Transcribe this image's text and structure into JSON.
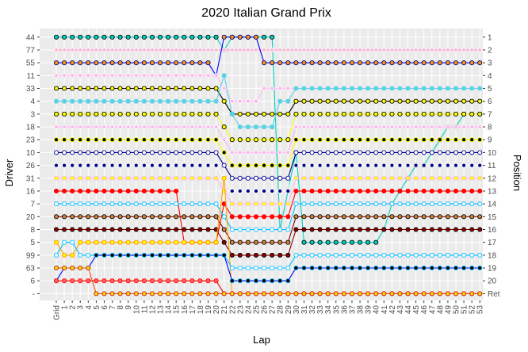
{
  "chart_data": {
    "type": "line",
    "title": "2020 Italian Grand Prix",
    "xlabel": "Lap",
    "ylabel_left": "Driver",
    "ylabel_right": "Position",
    "x_ticks": [
      "Grid",
      "1",
      "2",
      "3",
      "4",
      "5",
      "6",
      "7",
      "8",
      "9",
      "10",
      "11",
      "12",
      "13",
      "14",
      "15",
      "16",
      "17",
      "18",
      "19",
      "20",
      "21",
      "22",
      "23",
      "24",
      "25",
      "26",
      "27",
      "28",
      "29",
      "30",
      "31",
      "32",
      "33",
      "34",
      "35",
      "36",
      "37",
      "38",
      "39",
      "40",
      "41",
      "42",
      "43",
      "44",
      "45",
      "46",
      "47",
      "48",
      "49",
      "50",
      "51",
      "52",
      "53"
    ],
    "driver_ticks": [
      "44",
      "77",
      "55",
      "11",
      "33",
      "4",
      "3",
      "18",
      "23",
      "10",
      "26",
      "31",
      "16",
      "7",
      "20",
      "8",
      "5",
      "99",
      "63",
      "6",
      "-"
    ],
    "position_ticks": [
      "1",
      "2",
      "3",
      "4",
      "5",
      "6",
      "7",
      "8",
      "9",
      "10",
      "11",
      "12",
      "13",
      "14",
      "15",
      "16",
      "17",
      "18",
      "19",
      "20",
      "Ret"
    ],
    "y_range": [
      1,
      21
    ],
    "panel_background": "#ebebeb",
    "grid": true,
    "series": [
      {
        "color": "#00d2be",
        "fill": "#00d2be",
        "stroke": "#000000",
        "values": [
          1,
          1,
          1,
          1,
          1,
          1,
          1,
          1,
          1,
          1,
          1,
          1,
          1,
          1,
          1,
          1,
          1,
          1,
          1,
          1,
          1,
          2,
          1,
          1,
          1,
          1,
          1,
          1,
          16,
          13,
          10,
          17,
          17,
          17,
          17,
          17,
          17,
          17,
          17,
          17,
          17,
          16,
          14,
          13,
          12,
          11,
          11,
          10,
          9,
          8,
          8,
          7,
          7,
          7
        ]
      },
      {
        "color": "#ff87bc",
        "fill": "#ffb6d9",
        "stroke": "#ffffff",
        "values": [
          2,
          2,
          2,
          2,
          2,
          2,
          2,
          2,
          2,
          2,
          2,
          2,
          2,
          2,
          2,
          2,
          2,
          2,
          2,
          2,
          2,
          2,
          2,
          2,
          2,
          2,
          2,
          2,
          2,
          2,
          2,
          2,
          2,
          2,
          2,
          2,
          2,
          2,
          2,
          2,
          2,
          2,
          2,
          2,
          2,
          2,
          2,
          2,
          2,
          2,
          2,
          2,
          2,
          2
        ]
      },
      {
        "color": "#0000ff",
        "fill": "#ff9800",
        "stroke": "#00008b",
        "values": [
          3,
          3,
          3,
          3,
          3,
          3,
          3,
          3,
          3,
          3,
          3,
          3,
          3,
          3,
          3,
          3,
          3,
          3,
          3,
          3,
          4,
          1,
          1,
          1,
          1,
          1,
          3,
          3,
          3,
          3,
          3,
          3,
          3,
          3,
          3,
          3,
          3,
          3,
          3,
          3,
          3,
          3,
          3,
          3,
          3,
          3,
          3,
          3,
          3,
          3,
          3,
          3,
          3,
          3
        ]
      },
      {
        "color": "#ffc0f0",
        "fill": "#ffb6f0",
        "stroke": "#ffffff",
        "values": [
          4,
          4,
          4,
          4,
          4,
          4,
          4,
          4,
          4,
          4,
          4,
          4,
          4,
          4,
          4,
          4,
          4,
          4,
          4,
          4,
          4,
          5,
          6,
          6,
          6,
          6,
          5,
          5,
          5,
          5,
          5,
          5,
          5,
          5,
          5,
          5,
          5,
          5,
          5,
          5,
          5,
          5,
          5,
          5,
          5,
          5,
          5,
          5,
          5,
          5,
          5,
          5,
          5,
          5
        ]
      },
      {
        "color": "#000000",
        "fill": "#ffff00",
        "stroke": "#000000",
        "values": [
          5,
          5,
          5,
          5,
          5,
          5,
          5,
          5,
          5,
          5,
          5,
          5,
          5,
          5,
          5,
          5,
          5,
          5,
          5,
          5,
          5,
          6,
          7,
          7,
          7,
          7,
          7,
          7,
          7,
          7,
          6,
          6,
          6,
          6,
          6,
          6,
          6,
          6,
          6,
          6,
          6,
          6,
          6,
          6,
          6,
          6,
          6,
          6,
          6,
          6,
          6,
          6,
          6,
          6
        ]
      },
      {
        "color": "#5ad2e6",
        "fill": "#5ad2e6",
        "stroke": "#5ad2e6",
        "values": [
          6,
          6,
          6,
          6,
          6,
          6,
          6,
          6,
          6,
          6,
          6,
          6,
          6,
          6,
          6,
          6,
          6,
          6,
          6,
          6,
          6,
          4,
          7,
          8,
          8,
          8,
          8,
          8,
          6,
          6,
          5,
          5,
          5,
          5,
          5,
          5,
          5,
          5,
          5,
          5,
          5,
          5,
          5,
          5,
          5,
          5,
          5,
          5,
          5,
          5,
          5,
          5,
          5,
          5
        ]
      },
      {
        "color": "#ffff00",
        "fill": "#ffff00",
        "stroke": "#000000",
        "values": [
          7,
          7,
          7,
          7,
          7,
          7,
          7,
          7,
          7,
          7,
          7,
          7,
          7,
          7,
          7,
          7,
          7,
          7,
          7,
          7,
          7,
          8,
          9,
          9,
          9,
          9,
          9,
          9,
          9,
          9,
          7,
          7,
          7,
          7,
          7,
          7,
          7,
          7,
          7,
          7,
          7,
          7,
          7,
          7,
          7,
          7,
          7,
          7,
          7,
          7,
          7,
          7,
          7,
          7
        ]
      },
      {
        "color": "#ffb6f0",
        "fill": "#ffb6f0",
        "stroke": "#ffffff",
        "values": [
          8,
          8,
          8,
          8,
          8,
          8,
          8,
          8,
          8,
          8,
          8,
          8,
          8,
          8,
          8,
          8,
          8,
          8,
          8,
          8,
          8,
          9,
          10,
          10,
          10,
          10,
          10,
          10,
          10,
          10,
          8,
          8,
          8,
          8,
          8,
          8,
          8,
          8,
          8,
          8,
          8,
          8,
          8,
          8,
          8,
          8,
          8,
          8,
          8,
          8,
          8,
          8,
          8,
          8
        ]
      },
      {
        "color": "#ffff00",
        "fill": "#000000",
        "stroke": "#ffff00",
        "values": [
          9,
          9,
          9,
          9,
          9,
          9,
          9,
          9,
          9,
          9,
          9,
          9,
          9,
          9,
          9,
          9,
          9,
          9,
          9,
          9,
          9,
          10,
          11,
          11,
          11,
          11,
          11,
          11,
          11,
          11,
          9,
          9,
          9,
          9,
          9,
          9,
          9,
          9,
          9,
          9,
          9,
          9,
          9,
          9,
          9,
          9,
          9,
          9,
          9,
          9,
          9,
          9,
          9,
          9
        ]
      },
      {
        "color": "#00008b",
        "fill": "#ffffff",
        "stroke": "#00008b",
        "values": [
          10,
          10,
          10,
          10,
          10,
          10,
          10,
          10,
          10,
          10,
          10,
          10,
          10,
          10,
          10,
          10,
          10,
          10,
          10,
          10,
          10,
          11,
          12,
          12,
          12,
          12,
          12,
          12,
          12,
          12,
          10,
          10,
          10,
          10,
          10,
          10,
          10,
          10,
          10,
          10,
          10,
          10,
          10,
          10,
          10,
          10,
          10,
          10,
          10,
          10,
          10,
          10,
          10,
          10
        ]
      },
      {
        "color": "#ffffff",
        "fill": "#000080",
        "stroke": "#ffffff",
        "values": [
          11,
          11,
          11,
          11,
          11,
          11,
          11,
          11,
          11,
          11,
          11,
          11,
          11,
          11,
          11,
          11,
          11,
          11,
          11,
          11,
          11,
          12,
          13,
          13,
          13,
          13,
          13,
          13,
          13,
          13,
          11,
          11,
          11,
          11,
          11,
          11,
          11,
          11,
          11,
          11,
          11,
          11,
          11,
          11,
          11,
          11,
          11,
          11,
          11,
          11,
          11,
          11,
          11,
          11
        ]
      },
      {
        "color": "#ffb6f0",
        "fill": "#ffff00",
        "stroke": "#ffb6f0",
        "values": [
          12,
          12,
          12,
          12,
          12,
          12,
          12,
          12,
          12,
          12,
          12,
          12,
          12,
          12,
          12,
          12,
          12,
          12,
          12,
          12,
          12,
          13,
          14,
          14,
          14,
          14,
          14,
          14,
          14,
          14,
          12,
          12,
          12,
          12,
          12,
          12,
          12,
          12,
          12,
          12,
          12,
          12,
          12,
          12,
          12,
          12,
          12,
          12,
          12,
          12,
          12,
          12,
          12,
          12
        ]
      },
      {
        "color": "#ff0000",
        "fill": "#ff0000",
        "stroke": "#ff0000",
        "values": [
          13,
          13,
          13,
          13,
          13,
          13,
          13,
          13,
          13,
          13,
          13,
          13,
          13,
          13,
          13,
          13,
          17,
          17,
          17,
          17,
          17,
          14,
          15,
          15,
          15,
          15,
          15,
          15,
          15,
          15,
          13,
          13,
          13,
          13,
          13,
          13,
          13,
          13,
          13,
          13,
          13,
          13,
          13,
          13,
          13,
          13,
          13,
          13,
          13,
          13,
          13,
          13,
          13,
          13
        ]
      },
      {
        "color": "#00bfff",
        "fill": "#ffffff",
        "stroke": "#00bfff",
        "values": [
          14,
          14,
          14,
          14,
          14,
          14,
          14,
          14,
          14,
          14,
          14,
          14,
          14,
          14,
          14,
          14,
          14,
          14,
          14,
          14,
          14,
          15,
          16,
          16,
          16,
          16,
          16,
          16,
          16,
          16,
          14,
          14,
          14,
          14,
          14,
          14,
          14,
          14,
          14,
          14,
          14,
          14,
          14,
          14,
          14,
          14,
          14,
          14,
          14,
          14,
          14,
          14,
          14,
          14
        ]
      },
      {
        "color": "#8b0000",
        "fill": "#cd853f",
        "stroke": "#000000",
        "values": [
          15,
          15,
          15,
          15,
          15,
          15,
          15,
          15,
          15,
          15,
          15,
          15,
          15,
          15,
          15,
          15,
          15,
          15,
          15,
          15,
          15,
          16,
          17,
          17,
          17,
          17,
          17,
          17,
          17,
          17,
          15,
          15,
          15,
          15,
          15,
          15,
          15,
          15,
          15,
          15,
          15,
          15,
          15,
          15,
          15,
          15,
          15,
          15,
          15,
          15,
          15,
          15,
          15,
          15
        ]
      },
      {
        "color": "#8b0000",
        "fill": "#8b0000",
        "stroke": "#000000",
        "values": [
          16,
          16,
          16,
          16,
          16,
          16,
          16,
          16,
          16,
          16,
          16,
          16,
          16,
          16,
          16,
          16,
          16,
          16,
          16,
          16,
          16,
          17,
          18,
          18,
          18,
          18,
          18,
          18,
          18,
          18,
          16,
          16,
          16,
          16,
          16,
          16,
          16,
          16,
          16,
          16,
          16,
          16,
          16,
          16,
          16,
          16,
          16,
          16,
          16,
          16,
          16,
          16,
          16,
          16
        ]
      },
      {
        "color": "#ffa500",
        "fill": "#ffff00",
        "stroke": "#ff8c00",
        "values": [
          17,
          18,
          18,
          17,
          17,
          17,
          17,
          17,
          17,
          17,
          17,
          17,
          17,
          17,
          17,
          17,
          17,
          17,
          17,
          17,
          17,
          12,
          21,
          21,
          21,
          21,
          21,
          21,
          21,
          21,
          21,
          21,
          21,
          21,
          21,
          21,
          21,
          21,
          21,
          21,
          21,
          21,
          21,
          21,
          21,
          21,
          21,
          21,
          21,
          21,
          21,
          21,
          21,
          21
        ]
      },
      {
        "color": "#00bfff",
        "fill": "#ffffff",
        "stroke": "#00bfff",
        "values": [
          18,
          17,
          17,
          18,
          18,
          18,
          18,
          18,
          18,
          18,
          18,
          18,
          18,
          18,
          18,
          18,
          18,
          18,
          18,
          18,
          18,
          18,
          19,
          19,
          19,
          19,
          19,
          19,
          19,
          19,
          18,
          18,
          18,
          18,
          18,
          18,
          18,
          18,
          18,
          18,
          18,
          18,
          18,
          18,
          18,
          18,
          18,
          18,
          18,
          18,
          18,
          18,
          18,
          18
        ]
      },
      {
        "color": "#0000ff",
        "fill": "#000000",
        "stroke": "#00bfff",
        "values": [
          20,
          19,
          19,
          19,
          19,
          18,
          18,
          18,
          18,
          18,
          18,
          18,
          18,
          18,
          18,
          18,
          18,
          18,
          18,
          18,
          18,
          18,
          20,
          20,
          20,
          20,
          20,
          20,
          20,
          20,
          19,
          19,
          19,
          19,
          19,
          19,
          19,
          19,
          19,
          19,
          19,
          19,
          19,
          19,
          19,
          19,
          19,
          19,
          19,
          19,
          19,
          19,
          19,
          19
        ]
      },
      {
        "color": "#ff0000",
        "fill": "#ff6666",
        "stroke": "#ff0000",
        "values": [
          20,
          20,
          20,
          20,
          20,
          20,
          20,
          20,
          20,
          20,
          20,
          20,
          20,
          20,
          20,
          20,
          20,
          20,
          20,
          20,
          20,
          21,
          21,
          21,
          21,
          21,
          21,
          21,
          21,
          21,
          21,
          21,
          21,
          21,
          21,
          21,
          21,
          21,
          21,
          21,
          21,
          21,
          21,
          21,
          21,
          21,
          21,
          21,
          21,
          21,
          21,
          21,
          21,
          21
        ]
      },
      {
        "color": "#ff4500",
        "fill": "#ffd700",
        "stroke": "#b22222",
        "values": [
          19,
          19,
          19,
          19,
          19,
          21,
          21,
          21,
          21,
          21,
          21,
          21,
          21,
          21,
          21,
          21,
          21,
          21,
          21,
          21,
          21,
          21,
          21,
          21,
          21,
          21,
          21,
          21,
          21,
          21,
          21,
          21,
          21,
          21,
          21,
          21,
          21,
          21,
          21,
          21,
          21,
          21,
          21,
          21,
          21,
          21,
          21,
          21,
          21,
          21,
          21,
          21,
          21,
          21
        ]
      }
    ]
  }
}
